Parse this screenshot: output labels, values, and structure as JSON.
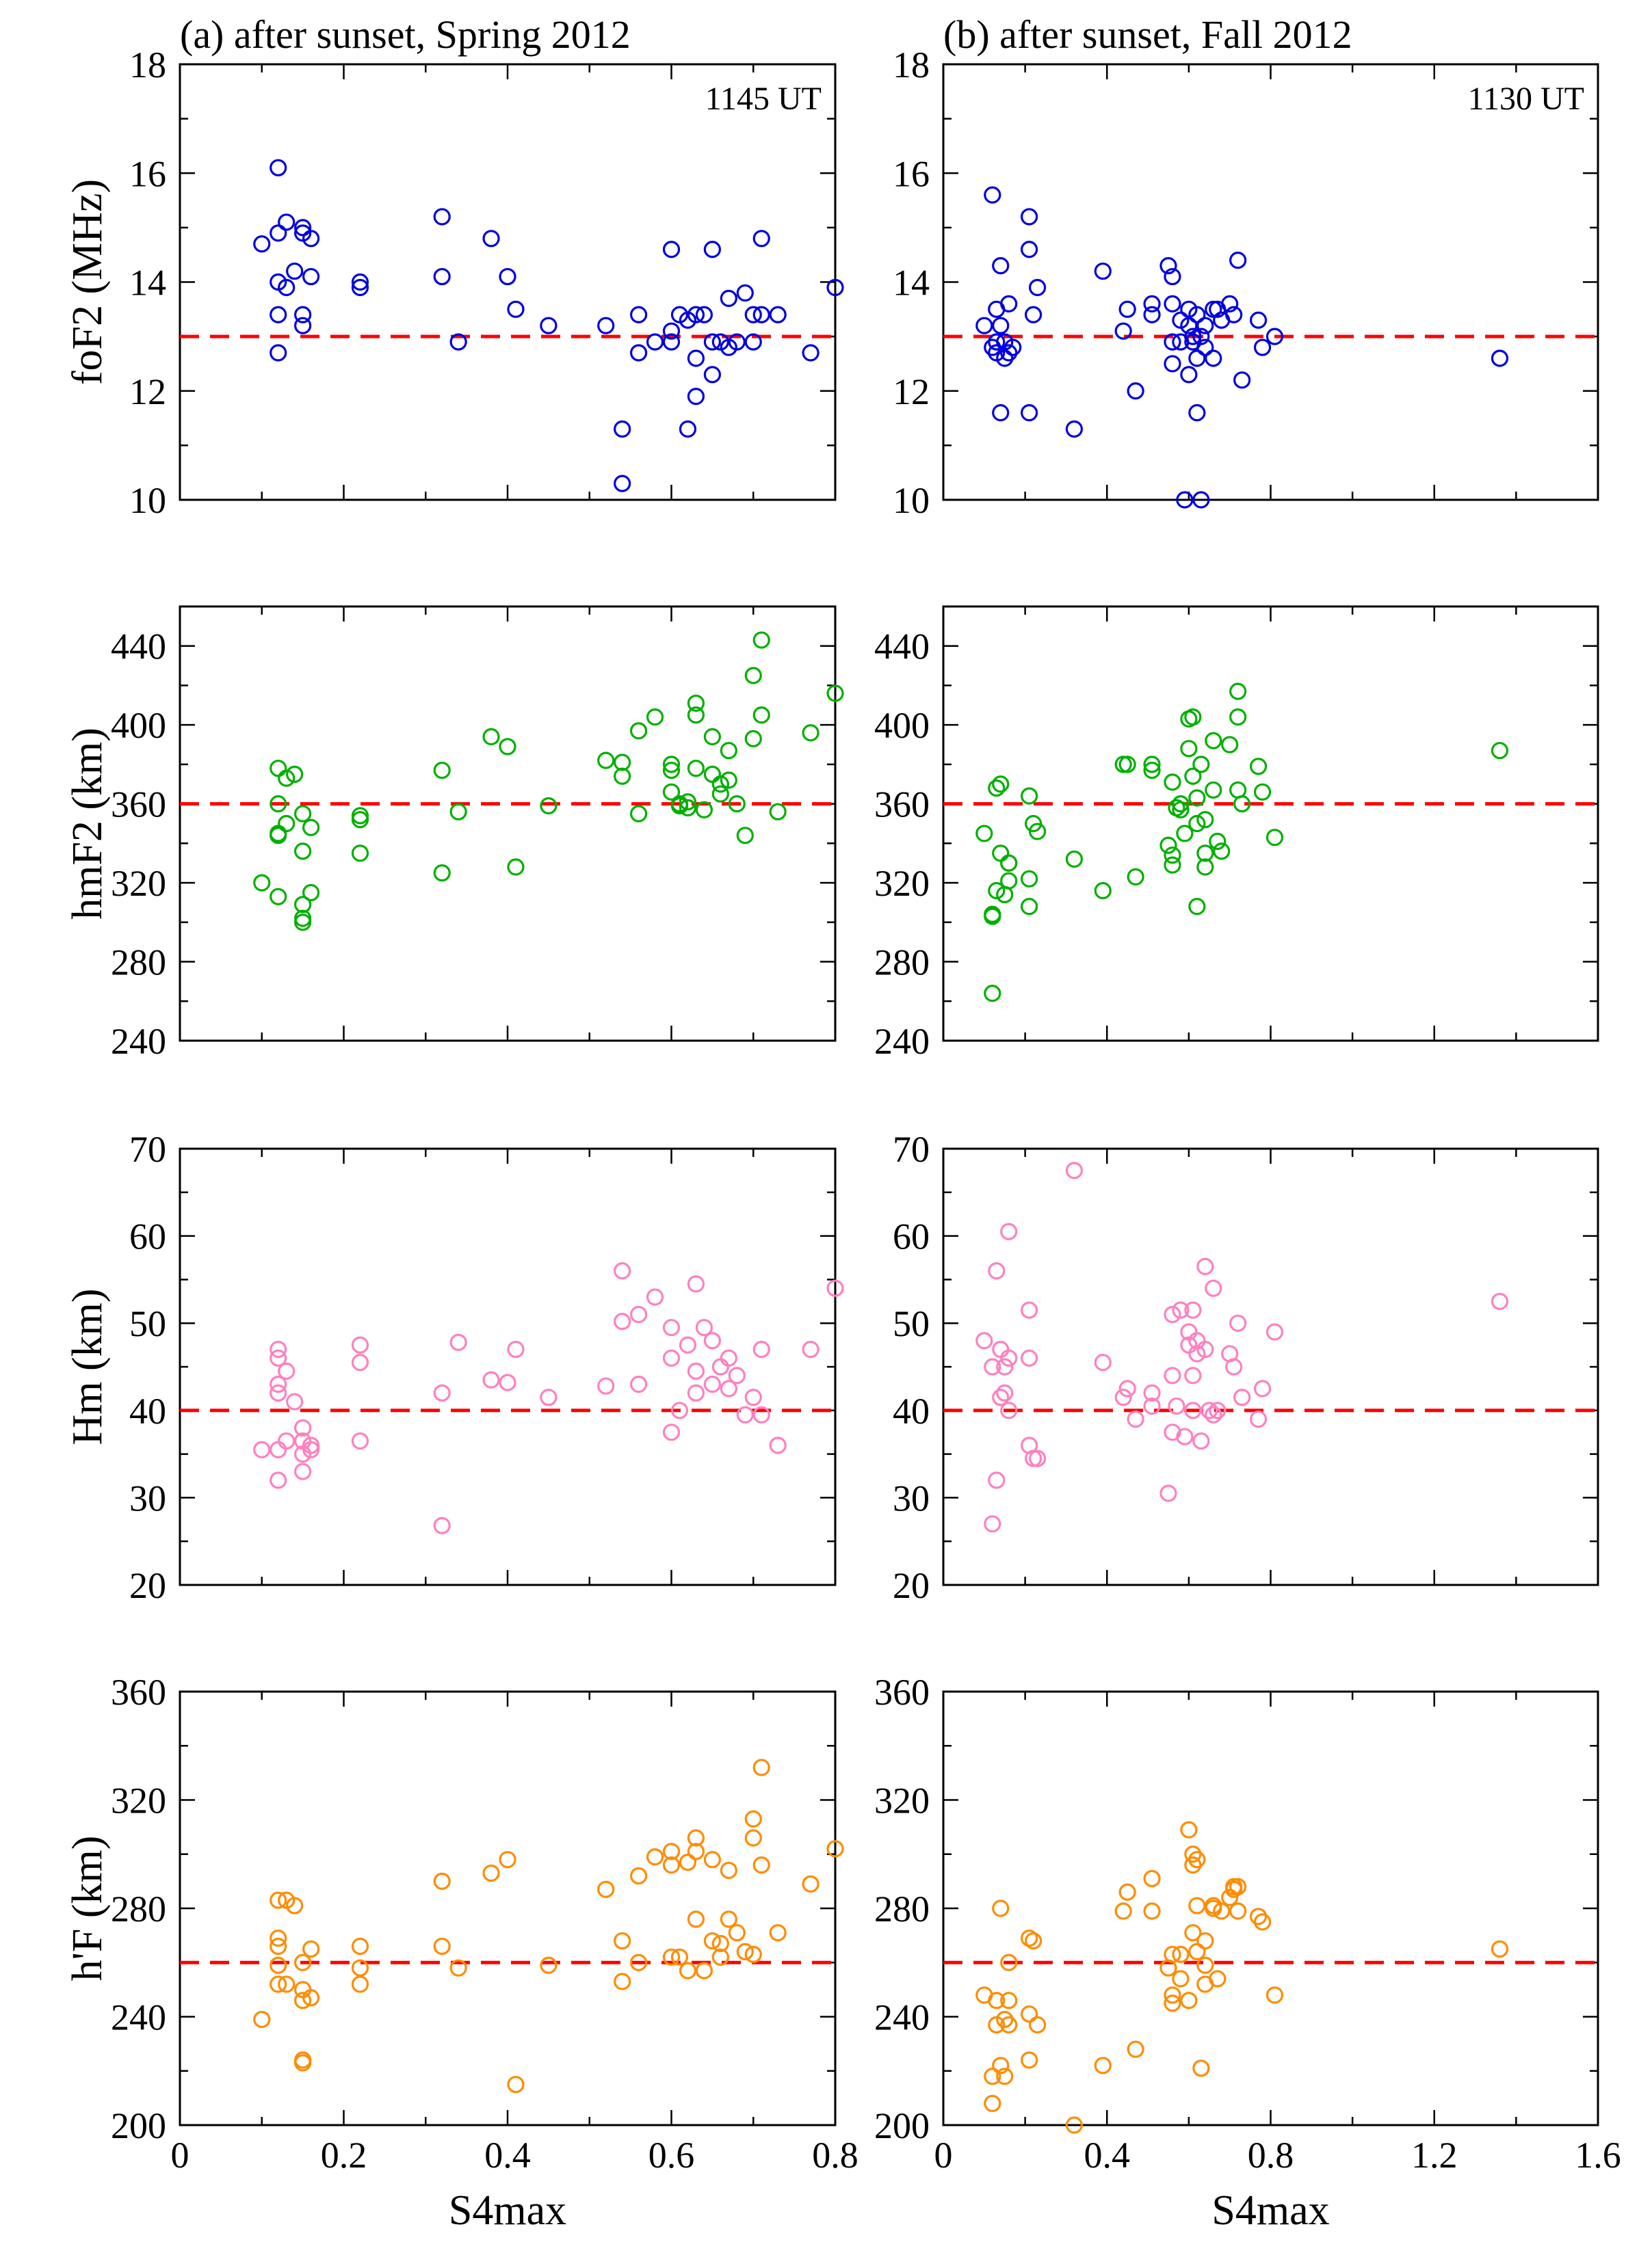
{
  "chart_data": [
    {
      "type": "scatter",
      "panel": "top-left",
      "title": "(a) after sunset, Spring 2012",
      "annotation": "1145 UT",
      "xlabel": "",
      "ylabel": "foF2 (MHz)",
      "xlim": [
        0,
        0.8
      ],
      "ylim": [
        10,
        18
      ],
      "xticks": [
        0,
        0.2,
        0.4,
        0.6,
        0.8
      ],
      "yticks": [
        10,
        12,
        14,
        16,
        18
      ],
      "reference_line": 13,
      "marker_color": "#0000e0",
      "x": [
        0.1,
        0.12,
        0.12,
        0.12,
        0.12,
        0.12,
        0.13,
        0.13,
        0.14,
        0.15,
        0.15,
        0.15,
        0.15,
        0.16,
        0.16,
        0.22,
        0.22,
        0.32,
        0.32,
        0.34,
        0.38,
        0.4,
        0.41,
        0.45,
        0.52,
        0.54,
        0.54,
        0.56,
        0.56,
        0.58,
        0.6,
        0.6,
        0.6,
        0.61,
        0.62,
        0.62,
        0.63,
        0.63,
        0.63,
        0.64,
        0.65,
        0.65,
        0.65,
        0.66,
        0.67,
        0.67,
        0.68,
        0.69,
        0.7,
        0.7,
        0.71,
        0.71,
        0.73,
        0.77,
        0.8
      ],
      "y": [
        14.7,
        16.1,
        14.9,
        14.0,
        13.4,
        12.7,
        15.1,
        13.9,
        14.2,
        15.0,
        14.9,
        13.4,
        13.2,
        14.8,
        14.1,
        14.0,
        13.9,
        15.2,
        14.1,
        12.9,
        14.8,
        14.1,
        13.5,
        13.2,
        13.2,
        11.3,
        10.3,
        13.4,
        12.7,
        12.9,
        14.6,
        13.1,
        12.9,
        13.4,
        13.3,
        11.3,
        13.4,
        12.6,
        11.9,
        13.4,
        14.6,
        12.3,
        12.9,
        12.9,
        13.7,
        12.8,
        12.9,
        13.8,
        13.4,
        12.9,
        14.8,
        13.4,
        13.4,
        12.7,
        13.9
      ]
    },
    {
      "type": "scatter",
      "panel": "top-right",
      "title": "(b) after sunset, Fall 2012",
      "annotation": "1130 UT",
      "xlabel": "",
      "ylabel": "",
      "xlim": [
        0,
        1.6
      ],
      "ylim": [
        10,
        18
      ],
      "xticks": [
        0,
        0.4,
        0.8,
        1.2,
        1.6
      ],
      "yticks": [
        10,
        12,
        14,
        16,
        18
      ],
      "reference_line": 13,
      "marker_color": "#0000e0",
      "x": [
        0.1,
        0.12,
        0.12,
        0.13,
        0.13,
        0.13,
        0.14,
        0.14,
        0.14,
        0.15,
        0.15,
        0.16,
        0.16,
        0.17,
        0.21,
        0.21,
        0.21,
        0.22,
        0.23,
        0.32,
        0.39,
        0.44,
        0.45,
        0.47,
        0.51,
        0.51,
        0.55,
        0.56,
        0.56,
        0.56,
        0.56,
        0.58,
        0.58,
        0.59,
        0.6,
        0.6,
        0.6,
        0.61,
        0.61,
        0.62,
        0.62,
        0.62,
        0.63,
        0.63,
        0.64,
        0.64,
        0.66,
        0.66,
        0.67,
        0.68,
        0.7,
        0.71,
        0.72,
        0.73,
        0.77,
        0.78,
        0.81,
        1.36
      ],
      "y": [
        13.2,
        15.6,
        12.8,
        13.5,
        12.9,
        12.7,
        14.3,
        13.2,
        11.6,
        12.9,
        12.6,
        13.6,
        12.7,
        12.8,
        15.2,
        14.6,
        11.6,
        13.4,
        13.9,
        11.3,
        14.2,
        13.1,
        13.5,
        12.0,
        13.6,
        13.4,
        14.3,
        14.1,
        13.6,
        12.9,
        12.5,
        13.3,
        12.9,
        10.0,
        13.5,
        13.2,
        12.3,
        13.0,
        12.9,
        13.4,
        12.6,
        11.6,
        13.0,
        10.0,
        13.2,
        12.8,
        13.5,
        12.6,
        13.5,
        13.3,
        13.6,
        13.4,
        14.4,
        12.2,
        13.3,
        12.8,
        13.0,
        12.6
      ]
    },
    {
      "type": "scatter",
      "panel": "row2-left",
      "xlabel": "",
      "ylabel": "hmF2 (km)",
      "xlim": [
        0,
        0.8
      ],
      "ylim": [
        240,
        460
      ],
      "xticks": [
        0,
        0.2,
        0.4,
        0.6,
        0.8
      ],
      "yticks": [
        240,
        280,
        320,
        360,
        400,
        440
      ],
      "reference_line": 360,
      "marker_color": "#00b000",
      "x": [
        0.1,
        0.12,
        0.12,
        0.12,
        0.12,
        0.12,
        0.13,
        0.13,
        0.14,
        0.15,
        0.15,
        0.15,
        0.15,
        0.15,
        0.16,
        0.16,
        0.22,
        0.22,
        0.22,
        0.32,
        0.32,
        0.34,
        0.38,
        0.4,
        0.41,
        0.45,
        0.52,
        0.54,
        0.54,
        0.56,
        0.56,
        0.58,
        0.6,
        0.6,
        0.6,
        0.61,
        0.61,
        0.62,
        0.62,
        0.63,
        0.63,
        0.63,
        0.64,
        0.65,
        0.65,
        0.66,
        0.66,
        0.67,
        0.67,
        0.68,
        0.69,
        0.7,
        0.7,
        0.71,
        0.71,
        0.73,
        0.77,
        0.8
      ],
      "y": [
        320,
        378,
        360,
        345,
        344,
        313,
        350,
        373,
        375,
        355,
        336,
        309,
        302,
        300,
        348,
        315,
        354,
        352,
        335,
        377,
        325,
        356,
        394,
        389,
        328,
        359,
        382,
        381,
        374,
        397,
        355,
        404,
        380,
        377,
        366,
        360,
        359,
        361,
        358,
        411,
        405,
        378,
        357,
        394,
        375,
        365,
        370,
        372,
        387,
        360,
        344,
        425,
        393,
        443,
        405,
        356,
        396,
        416
      ]
    },
    {
      "type": "scatter",
      "panel": "row2-right",
      "xlabel": "",
      "ylabel": "",
      "xlim": [
        0,
        1.6
      ],
      "ylim": [
        240,
        460
      ],
      "xticks": [
        0,
        0.4,
        0.8,
        1.2,
        1.6
      ],
      "yticks": [
        240,
        280,
        320,
        360,
        400,
        440
      ],
      "reference_line": 360,
      "marker_color": "#00b000",
      "x": [
        0.1,
        0.12,
        0.12,
        0.12,
        0.13,
        0.13,
        0.14,
        0.14,
        0.15,
        0.16,
        0.16,
        0.16,
        0.21,
        0.21,
        0.21,
        0.22,
        0.23,
        0.32,
        0.39,
        0.44,
        0.45,
        0.47,
        0.51,
        0.51,
        0.55,
        0.56,
        0.56,
        0.56,
        0.57,
        0.58,
        0.58,
        0.59,
        0.6,
        0.6,
        0.61,
        0.61,
        0.62,
        0.62,
        0.62,
        0.63,
        0.64,
        0.64,
        0.64,
        0.66,
        0.66,
        0.67,
        0.68,
        0.7,
        0.72,
        0.72,
        0.72,
        0.73,
        0.77,
        0.78,
        0.81,
        1.36
      ],
      "y": [
        345,
        304,
        264,
        303,
        368,
        316,
        370,
        335,
        314,
        330,
        330,
        321,
        364,
        322,
        308,
        350,
        346,
        332,
        316,
        380,
        380,
        323,
        380,
        377,
        339,
        371,
        334,
        329,
        358,
        360,
        357,
        345,
        403,
        388,
        404,
        374,
        363,
        350,
        308,
        380,
        352,
        335,
        328,
        392,
        367,
        341,
        336,
        390,
        417,
        404,
        367,
        360,
        379,
        366,
        343,
        387
      ]
    },
    {
      "type": "scatter",
      "panel": "row3-left",
      "xlabel": "",
      "ylabel": "Hm (km)",
      "xlim": [
        0,
        0.8
      ],
      "ylim": [
        20,
        70
      ],
      "xticks": [
        0,
        0.2,
        0.4,
        0.6,
        0.8
      ],
      "yticks": [
        20,
        30,
        40,
        50,
        60,
        70
      ],
      "reference_line": 40,
      "marker_color": "#ff80c0",
      "x": [
        0.1,
        0.12,
        0.12,
        0.12,
        0.12,
        0.12,
        0.12,
        0.13,
        0.13,
        0.14,
        0.15,
        0.15,
        0.15,
        0.15,
        0.16,
        0.16,
        0.22,
        0.22,
        0.22,
        0.32,
        0.32,
        0.34,
        0.38,
        0.4,
        0.41,
        0.45,
        0.52,
        0.54,
        0.54,
        0.56,
        0.56,
        0.58,
        0.6,
        0.6,
        0.6,
        0.61,
        0.62,
        0.63,
        0.63,
        0.63,
        0.64,
        0.65,
        0.65,
        0.66,
        0.67,
        0.67,
        0.68,
        0.69,
        0.7,
        0.71,
        0.71,
        0.73,
        0.77,
        0.8
      ],
      "y": [
        35.5,
        47.0,
        46.0,
        43.0,
        42.0,
        35.5,
        32.0,
        44.5,
        36.5,
        41.0,
        38.0,
        35.0,
        33.0,
        36.5,
        36.0,
        35.5,
        47.5,
        45.5,
        36.5,
        42.0,
        26.8,
        47.8,
        43.5,
        43.2,
        47.0,
        41.5,
        42.8,
        56.0,
        50.2,
        51.0,
        43.0,
        53.0,
        49.5,
        46.0,
        37.5,
        40.0,
        47.5,
        54.5,
        44.5,
        42.0,
        49.5,
        48.0,
        43.0,
        45.0,
        46.0,
        42.5,
        44.0,
        39.5,
        41.5,
        47.0,
        39.5,
        36.0,
        47.0,
        54.0
      ]
    },
    {
      "type": "scatter",
      "panel": "row3-right",
      "xlabel": "",
      "ylabel": "",
      "xlim": [
        0,
        1.6
      ],
      "ylim": [
        20,
        70
      ],
      "xticks": [
        0,
        0.4,
        0.8,
        1.2,
        1.6
      ],
      "yticks": [
        20,
        30,
        40,
        50,
        60,
        70
      ],
      "reference_line": 40,
      "marker_color": "#ff80c0",
      "x": [
        0.1,
        0.12,
        0.12,
        0.13,
        0.13,
        0.14,
        0.14,
        0.15,
        0.15,
        0.16,
        0.16,
        0.16,
        0.21,
        0.21,
        0.21,
        0.22,
        0.23,
        0.32,
        0.39,
        0.44,
        0.45,
        0.47,
        0.51,
        0.51,
        0.55,
        0.56,
        0.56,
        0.56,
        0.57,
        0.58,
        0.59,
        0.6,
        0.6,
        0.61,
        0.61,
        0.61,
        0.62,
        0.62,
        0.63,
        0.64,
        0.64,
        0.65,
        0.66,
        0.66,
        0.67,
        0.7,
        0.71,
        0.72,
        0.73,
        0.77,
        0.78,
        0.81,
        1.36
      ],
      "y": [
        48.0,
        45.0,
        27.0,
        56.0,
        32.0,
        47.0,
        41.5,
        45.0,
        42.0,
        60.5,
        46.0,
        40.0,
        51.5,
        46.0,
        36.0,
        34.5,
        34.5,
        67.5,
        45.5,
        41.5,
        42.5,
        39.0,
        42.0,
        40.5,
        30.5,
        51.0,
        44.0,
        37.5,
        40.5,
        51.5,
        37.0,
        49.0,
        47.5,
        51.5,
        44.0,
        40.0,
        48.0,
        46.5,
        36.5,
        56.5,
        47.0,
        40.0,
        54.0,
        39.5,
        40.0,
        46.5,
        45.0,
        50.0,
        41.5,
        39.0,
        42.5,
        49.0,
        52.5
      ]
    },
    {
      "type": "scatter",
      "panel": "bottom-left",
      "xlabel": "S4max",
      "ylabel": "h'F (km)",
      "xlim": [
        0,
        0.8
      ],
      "ylim": [
        200,
        360
      ],
      "xticks": [
        0,
        0.2,
        0.4,
        0.6,
        0.8
      ],
      "xtick_labels": [
        "0",
        "0.2",
        "0.4",
        "0.6",
        "0.8"
      ],
      "yticks": [
        200,
        240,
        280,
        320,
        360
      ],
      "reference_line": 260,
      "marker_color": "#ff8c00",
      "x": [
        0.1,
        0.12,
        0.12,
        0.12,
        0.12,
        0.12,
        0.13,
        0.13,
        0.14,
        0.15,
        0.15,
        0.15,
        0.15,
        0.15,
        0.16,
        0.16,
        0.22,
        0.22,
        0.22,
        0.32,
        0.32,
        0.34,
        0.38,
        0.4,
        0.41,
        0.45,
        0.52,
        0.54,
        0.54,
        0.56,
        0.56,
        0.58,
        0.6,
        0.6,
        0.6,
        0.61,
        0.62,
        0.62,
        0.63,
        0.63,
        0.63,
        0.64,
        0.65,
        0.65,
        0.66,
        0.66,
        0.67,
        0.67,
        0.68,
        0.69,
        0.7,
        0.7,
        0.7,
        0.71,
        0.71,
        0.73,
        0.77,
        0.8
      ],
      "y": [
        239,
        283,
        269,
        266,
        259,
        252,
        283,
        252,
        281,
        250,
        246,
        224,
        223,
        260,
        265,
        247,
        266,
        258,
        252,
        290,
        266,
        258,
        293,
        298,
        215,
        259,
        287,
        268,
        253,
        292,
        260,
        299,
        301,
        296,
        262,
        262,
        297,
        257,
        306,
        301,
        276,
        257,
        298,
        268,
        262,
        267,
        294,
        276,
        271,
        264,
        313,
        306,
        263,
        332,
        296,
        271,
        289,
        302
      ]
    },
    {
      "type": "scatter",
      "panel": "bottom-right",
      "xlabel": "S4max",
      "ylabel": "",
      "xlim": [
        0,
        1.6
      ],
      "ylim": [
        200,
        360
      ],
      "xticks": [
        0,
        0.4,
        0.8,
        1.2,
        1.6
      ],
      "xtick_labels": [
        "0",
        "0.4",
        "0.8",
        "1.2",
        "1.6"
      ],
      "yticks": [
        200,
        240,
        280,
        320,
        360
      ],
      "reference_line": 260,
      "marker_color": "#ff8c00",
      "x": [
        0.1,
        0.12,
        0.12,
        0.13,
        0.13,
        0.14,
        0.14,
        0.15,
        0.15,
        0.16,
        0.16,
        0.16,
        0.21,
        0.21,
        0.21,
        0.22,
        0.23,
        0.32,
        0.39,
        0.44,
        0.45,
        0.47,
        0.51,
        0.51,
        0.55,
        0.56,
        0.56,
        0.56,
        0.58,
        0.58,
        0.6,
        0.6,
        0.61,
        0.61,
        0.61,
        0.62,
        0.62,
        0.62,
        0.63,
        0.64,
        0.64,
        0.64,
        0.66,
        0.66,
        0.67,
        0.68,
        0.7,
        0.71,
        0.71,
        0.72,
        0.72,
        0.77,
        0.78,
        0.81,
        1.36
      ],
      "y": [
        248,
        218,
        208,
        246,
        237,
        280,
        222,
        239,
        218,
        260,
        246,
        237,
        269,
        241,
        224,
        268,
        237,
        200,
        222,
        279,
        286,
        228,
        291,
        279,
        258,
        263,
        248,
        245,
        254,
        263,
        246,
        309,
        300,
        296,
        271,
        298,
        281,
        264,
        221,
        268,
        259,
        252,
        281,
        280,
        254,
        279,
        284,
        288,
        287,
        288,
        279,
        277,
        275,
        248,
        265
      ]
    }
  ]
}
